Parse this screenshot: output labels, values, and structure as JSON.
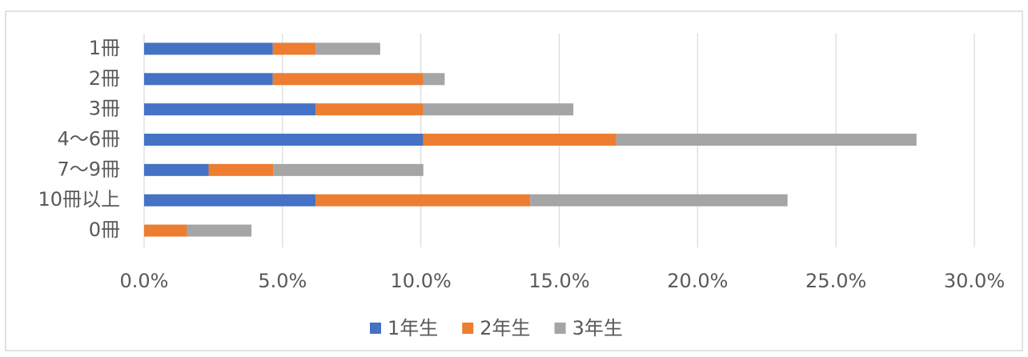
{
  "chart_data": {
    "type": "stacked_hbar",
    "categories": [
      "1冊",
      "2冊",
      "3冊",
      "4～6冊",
      "7～9冊",
      "10冊以上",
      "0冊"
    ],
    "series": [
      {
        "name": "1年生",
        "color": "#4472c4",
        "values": [
          4.65,
          4.65,
          6.2,
          10.08,
          2.33,
          6.2,
          0
        ]
      },
      {
        "name": "2年生",
        "color": "#ed7d31",
        "values": [
          1.55,
          5.43,
          3.88,
          6.98,
          2.33,
          7.75,
          1.55
        ]
      },
      {
        "name": "3年生",
        "color": "#a5a5a5",
        "values": [
          2.33,
          0.78,
          5.43,
          10.85,
          5.43,
          9.3,
          2.33
        ]
      }
    ],
    "xlim": [
      0,
      30
    ],
    "xticks": [
      {
        "value": 0,
        "label": "0.0%"
      },
      {
        "value": 5,
        "label": "5.0%"
      },
      {
        "value": 10,
        "label": "10.0%"
      },
      {
        "value": 15,
        "label": "15.0%"
      },
      {
        "value": 20,
        "label": "20.0%"
      },
      {
        "value": 25,
        "label": "25.0%"
      },
      {
        "value": 30,
        "label": "30.0%"
      }
    ],
    "grid": true,
    "legend": "bottom"
  }
}
